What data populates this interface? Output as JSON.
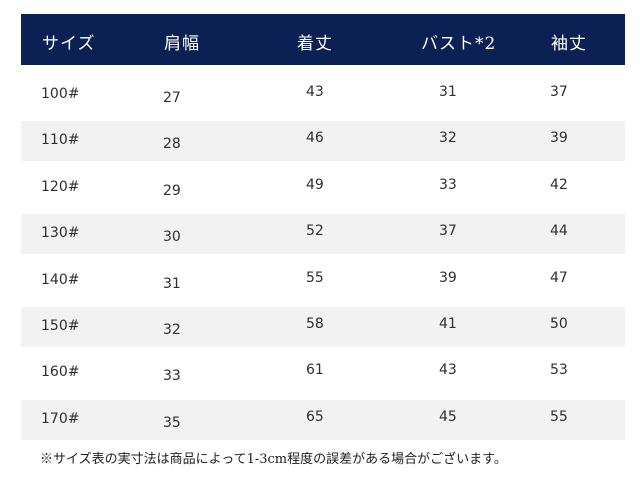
{
  "table": {
    "headers": [
      "サイズ",
      "肩幅",
      "着丈",
      "バスト*2",
      "袖丈"
    ],
    "rows": [
      [
        "100#",
        "27",
        "43",
        "31",
        "37"
      ],
      [
        "110#",
        "28",
        "46",
        "32",
        "39"
      ],
      [
        "120#",
        "29",
        "49",
        "33",
        "42"
      ],
      [
        "130#",
        "30",
        "52",
        "37",
        "44"
      ],
      [
        "140#",
        "31",
        "55",
        "39",
        "47"
      ],
      [
        "150#",
        "32",
        "58",
        "41",
        "50"
      ],
      [
        "160#",
        "33",
        "61",
        "43",
        "53"
      ],
      [
        "170#",
        "35",
        "65",
        "45",
        "55"
      ]
    ]
  },
  "footnote": "※サイズ表の実寸法は商品によって1-3cm程度の誤差がある場合がございます。",
  "colors": {
    "header_bg": "#0b2153",
    "row_shade": "#f2f2f2"
  }
}
